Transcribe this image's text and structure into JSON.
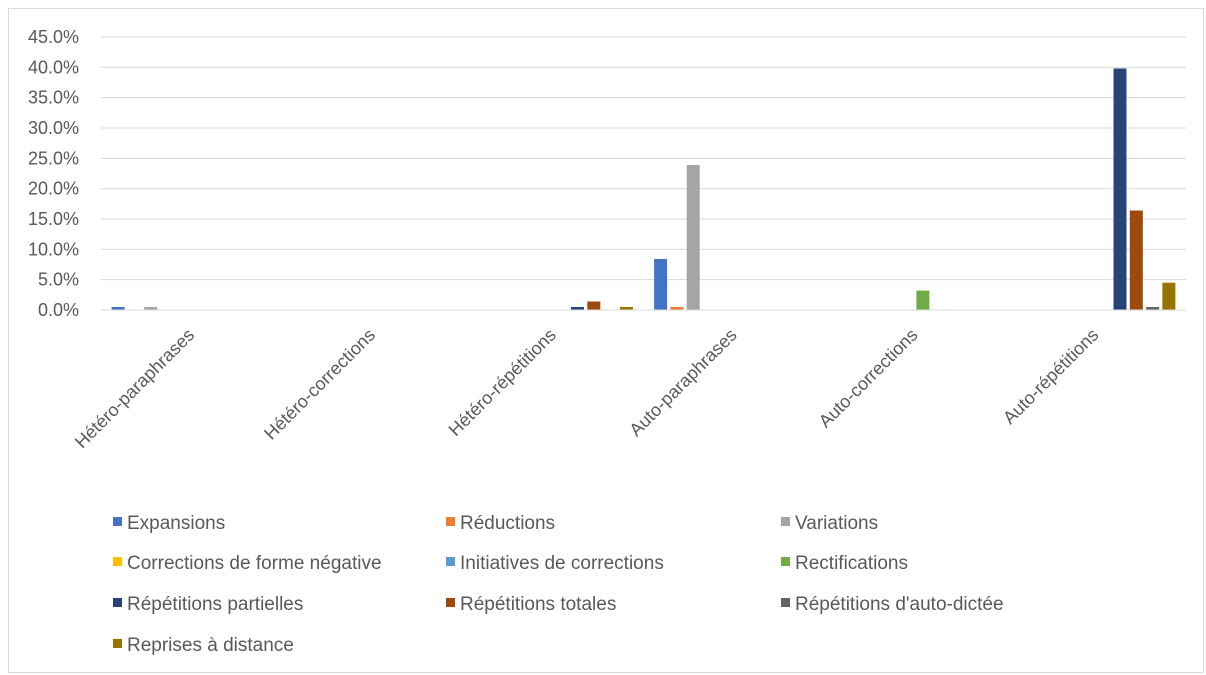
{
  "chart_data": {
    "type": "bar",
    "title": "",
    "xlabel": "",
    "ylabel": "",
    "ylim": [
      0,
      45
    ],
    "y_ticks": [
      "0.0%",
      "5.0%",
      "10.0%",
      "15.0%",
      "20.0%",
      "25.0%",
      "30.0%",
      "35.0%",
      "40.0%",
      "45.0%"
    ],
    "y_tick_values": [
      0,
      5,
      10,
      15,
      20,
      25,
      30,
      35,
      40,
      45
    ],
    "grid": true,
    "legend_position": "bottom",
    "categories": [
      "Hétéro-paraphrases",
      "Hétéro-corrections",
      "Hétéro-répétitions",
      "Auto-paraphrases",
      "Auto-corrections",
      "Auto-répétitions"
    ],
    "series": [
      {
        "name": "Expansions",
        "color": "#4472C4",
        "values": [
          0.5,
          0,
          0,
          8.4,
          0,
          0
        ]
      },
      {
        "name": "Réductions",
        "color": "#ED7D31",
        "values": [
          0,
          0,
          0,
          0.5,
          0,
          0
        ]
      },
      {
        "name": "Variations",
        "color": "#A5A5A5",
        "values": [
          0.5,
          0,
          0,
          23.9,
          0,
          0
        ]
      },
      {
        "name": "Corrections de forme négative",
        "color": "#FFC000",
        "values": [
          0,
          0,
          0,
          0,
          0,
          0
        ]
      },
      {
        "name": "Initiatives de corrections",
        "color": "#5B9BD5",
        "values": [
          0,
          0,
          0,
          0,
          0,
          0
        ]
      },
      {
        "name": "Rectifications",
        "color": "#70AD47",
        "values": [
          0,
          0,
          0,
          0,
          3.2,
          0
        ]
      },
      {
        "name": "Répétitions partielles",
        "color": "#264478",
        "values": [
          0,
          0,
          0.5,
          0,
          0,
          39.8
        ]
      },
      {
        "name": "Répétitions totales",
        "color": "#9E480E",
        "values": [
          0,
          0,
          1.4,
          0,
          0,
          16.4
        ]
      },
      {
        "name": "Répétitions d'auto-dictée",
        "color": "#636363",
        "values": [
          0,
          0,
          0,
          0,
          0,
          0.5
        ]
      },
      {
        "name": "Reprises à distance",
        "color": "#997300",
        "values": [
          0,
          0,
          0.5,
          0,
          0,
          4.5
        ]
      }
    ]
  }
}
